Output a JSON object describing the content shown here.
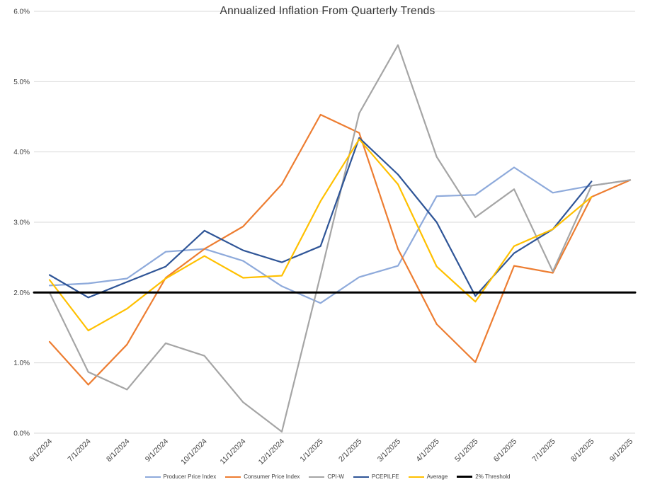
{
  "chart_data": {
    "type": "line",
    "title": "Annualized Inflation From Quarterly Trends",
    "categories": [
      "6/1/2024",
      "7/1/2024",
      "8/1/2024",
      "9/1/2024",
      "10/1/2024",
      "11/1/2024",
      "12/1/2024",
      "1/1/2025",
      "2/1/2025",
      "3/1/2025",
      "4/1/2025",
      "5/1/2025",
      "6/1/2025",
      "7/1/2025",
      "8/1/2025",
      "9/1/2025"
    ],
    "series": [
      {
        "name": "Producer Price Index",
        "color": "#8EAADB",
        "width": 2.2,
        "values": [
          2.1,
          2.13,
          2.2,
          2.58,
          2.62,
          2.45,
          2.09,
          1.85,
          2.22,
          2.38,
          3.37,
          3.39,
          3.78,
          3.42,
          3.52,
          3.6
        ]
      },
      {
        "name": "Consumer Price Index",
        "color": "#ED7D31",
        "width": 2.2,
        "values": [
          1.3,
          0.69,
          1.26,
          2.21,
          2.62,
          2.94,
          3.54,
          4.53,
          4.27,
          2.62,
          1.55,
          1.01,
          2.38,
          2.28,
          3.36,
          3.6
        ]
      },
      {
        "name": "CPI-W",
        "color": "#A5A5A5",
        "width": 2.2,
        "values": [
          2.0,
          0.87,
          0.62,
          1.28,
          1.1,
          0.44,
          0.02,
          2.25,
          4.55,
          5.52,
          3.93,
          3.07,
          3.47,
          2.3,
          3.52,
          3.6
        ]
      },
      {
        "name": "PCEPILFE",
        "color": "#2F5597",
        "width": 2.2,
        "values": [
          2.25,
          1.93,
          2.15,
          2.37,
          2.88,
          2.6,
          2.43,
          2.66,
          4.2,
          3.68,
          3.0,
          1.95,
          2.56,
          2.9,
          3.58,
          null
        ]
      },
      {
        "name": "Average",
        "color": "#FFC000",
        "width": 2.2,
        "values": [
          2.18,
          1.46,
          1.77,
          2.2,
          2.52,
          2.21,
          2.24,
          3.3,
          4.18,
          3.54,
          2.37,
          1.87,
          2.66,
          2.9,
          3.36,
          null
        ]
      },
      {
        "name": "2% Threshold",
        "color": "#000000",
        "width": 3,
        "full_width": true,
        "values": [
          2,
          2,
          2,
          2,
          2,
          2,
          2,
          2,
          2,
          2,
          2,
          2,
          2,
          2,
          2,
          2
        ]
      }
    ],
    "xlabel": "",
    "ylabel": "",
    "ylim": [
      0,
      6
    ],
    "y_axis": {
      "min": 0,
      "max": 6,
      "step": 1,
      "tick_labels": [
        "0.0%",
        "1.0%",
        "2.0%",
        "3.0%",
        "4.0%",
        "5.0%",
        "6.0%"
      ]
    },
    "grid": true,
    "legend_position": "bottom",
    "colors": {
      "gridline": "#D9D9D9",
      "axis_label": "#404040",
      "title": "#333333"
    }
  }
}
